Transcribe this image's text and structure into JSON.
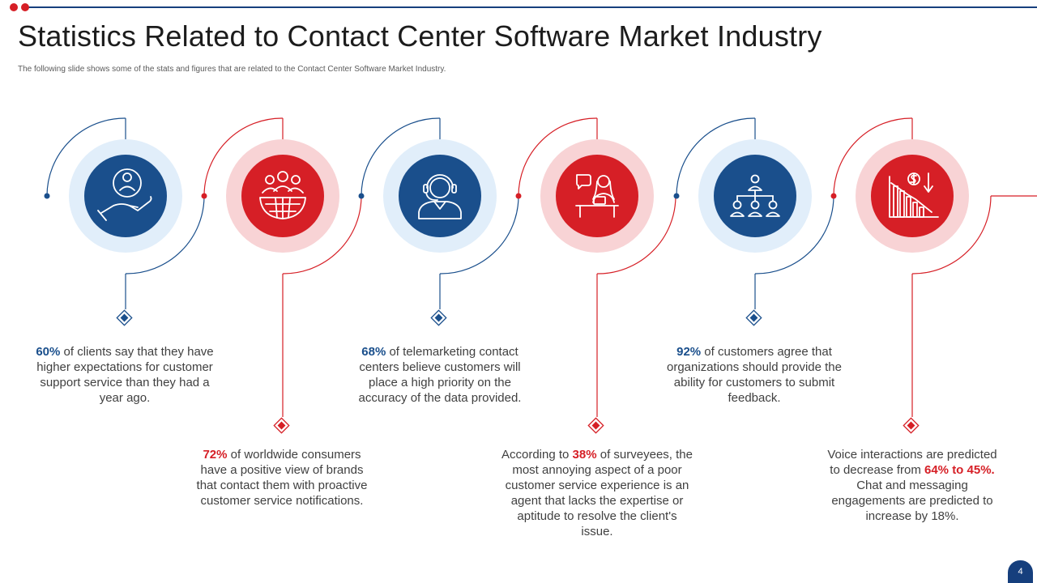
{
  "header": {
    "title": "Statistics Related to Contact Center Software Market Industry",
    "subtitle": "The following slide shows some of the stats and figures that are related to the Contact Center Software Market Industry."
  },
  "colors": {
    "blue": "#1a4f8c",
    "red": "#d61f26",
    "blue_halo": "#e1eefa",
    "red_halo": "#f8d3d5",
    "title_rule": "#163f7d"
  },
  "steps": [
    {
      "color": "blue",
      "icon": "hand-holding-person-icon",
      "pre": "",
      "highlight": "60%",
      "post": " of clients say that they have higher expectations for customer support service than they had a year ago."
    },
    {
      "color": "red",
      "icon": "global-consumers-icon",
      "pre": "",
      "highlight": "72%",
      "post": " of worldwide consumers have a positive view of brands that contact them with proactive customer service notifications."
    },
    {
      "color": "blue",
      "icon": "headset-agent-icon",
      "pre": "",
      "highlight": "68%",
      "post": " of telemarketing contact centers believe customers will place a high priority on the accuracy of the data provided."
    },
    {
      "color": "red",
      "icon": "agent-at-desk-icon",
      "pre": "According to ",
      "highlight": "38%",
      "post": " of surveyees, the most annoying aspect of a poor customer service experience is an agent that lacks the expertise or aptitude to resolve the client's issue."
    },
    {
      "color": "blue",
      "icon": "organization-chart-icon",
      "pre": "",
      "highlight": "92%",
      "post": " of customers agree that organizations should provide the ability for customers to submit feedback."
    },
    {
      "color": "red",
      "icon": "declining-chart-icon",
      "pre": "Voice interactions are predicted to decrease from ",
      "highlight": "64% to 45%.",
      "post": " Chat and messaging engagements are predicted to increase by 18%."
    }
  ],
  "page_number": "4"
}
